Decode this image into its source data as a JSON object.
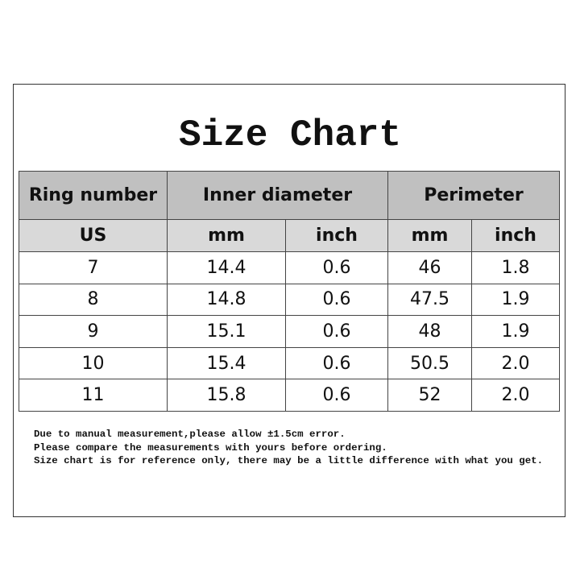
{
  "title": "Size Chart",
  "table": {
    "header_groups": [
      "Ring number",
      "Inner diameter",
      "Perimeter"
    ],
    "sub_headers": [
      "US",
      "mm",
      "inch",
      "mm",
      "inch"
    ],
    "rows": [
      [
        "7",
        "14.4",
        "0.6",
        "46",
        "1.8"
      ],
      [
        "8",
        "14.8",
        "0.6",
        "47.5",
        "1.9"
      ],
      [
        "9",
        "15.1",
        "0.6",
        "48",
        "1.9"
      ],
      [
        "10",
        "15.4",
        "0.6",
        "50.5",
        "2.0"
      ],
      [
        "11",
        "15.8",
        "0.6",
        "52",
        "2.0"
      ]
    ]
  },
  "notes": [
    "Due to manual measurement,please allow ±1.5cm error.",
    "Please compare the measurements with yours before ordering.",
    "Size chart is for reference only, there may be a little difference with what you get."
  ],
  "colors": {
    "header_primary": "#c0c0c0",
    "header_secondary": "#d9d9d9"
  }
}
